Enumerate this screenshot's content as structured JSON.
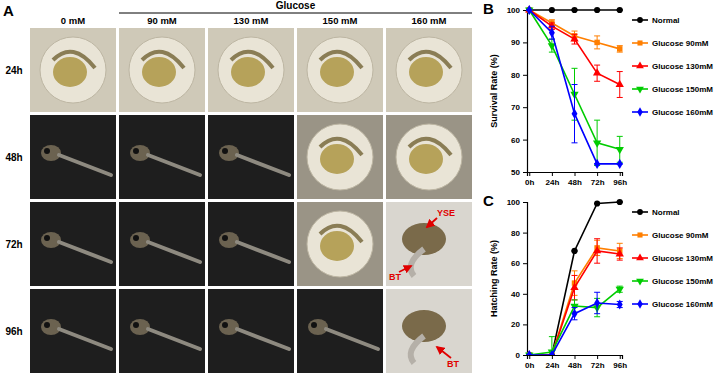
{
  "panel_a": {
    "label": "A",
    "header": "Glucose",
    "columns": [
      "0 mM",
      "90 mM",
      "130 mM",
      "150 mM",
      "160 mM"
    ],
    "rows": [
      "24h",
      "48h",
      "72h",
      "96h"
    ],
    "notes": [
      {
        "row": "72h",
        "column": "160 mM",
        "text": "YSE"
      },
      {
        "row": "72h",
        "column": "160 mM",
        "text": "BT"
      },
      {
        "row": "96h",
        "column": "160 mM",
        "text": "BT"
      }
    ]
  },
  "chart_data": [
    {
      "type": "line",
      "panel": "B",
      "y_label": "Survival Rate (%)",
      "categories": [
        "0h",
        "24h",
        "48h",
        "72h",
        "96h"
      ],
      "ylim": [
        50,
        100
      ],
      "yticks": [
        50,
        60,
        70,
        80,
        90,
        100
      ],
      "grid": false,
      "legend": "right",
      "series": [
        {
          "name": "Normal",
          "color": "#000000",
          "marker": "circle",
          "values": [
            100,
            100,
            100,
            100,
            100
          ],
          "errors": [
            0,
            0,
            0,
            0,
            0
          ]
        },
        {
          "name": "Glucose 90mM",
          "color": "#ff7f00",
          "marker": "square",
          "values": [
            100,
            96,
            92,
            90,
            88
          ],
          "errors": [
            0,
            1,
            1.5,
            2,
            1
          ]
        },
        {
          "name": "Glucose 130mM",
          "color": "#ff0000",
          "marker": "triangle-up",
          "values": [
            100,
            95,
            91,
            80.5,
            77
          ],
          "errors": [
            0,
            1,
            1.5,
            2.5,
            4
          ]
        },
        {
          "name": "Glucose 150mM",
          "color": "#00cc00",
          "marker": "triangle-down",
          "values": [
            100,
            89,
            74,
            59,
            57
          ],
          "errors": [
            0,
            2,
            8,
            7,
            4
          ]
        },
        {
          "name": "Glucose 160mM",
          "color": "#0000ff",
          "marker": "diamond",
          "values": [
            100,
            93,
            68,
            52.5,
            52.5
          ],
          "errors": [
            0,
            2,
            9,
            0,
            0
          ]
        }
      ]
    },
    {
      "type": "line",
      "panel": "C",
      "y_label": "Hatching Rate (%)",
      "categories": [
        "0h",
        "24h",
        "48h",
        "72h",
        "96h"
      ],
      "ylim": [
        0,
        100
      ],
      "yticks": [
        0,
        20,
        40,
        60,
        80,
        100
      ],
      "grid": false,
      "legend": "right",
      "series": [
        {
          "name": "Normal",
          "color": "#000000",
          "marker": "circle",
          "values": [
            0,
            0,
            68,
            99,
            100
          ],
          "errors": [
            0,
            0,
            0,
            0,
            0
          ]
        },
        {
          "name": "Glucose 90mM",
          "color": "#ff7f00",
          "marker": "square",
          "values": [
            0,
            0,
            47,
            70,
            68
          ],
          "errors": [
            0,
            0,
            8,
            5,
            5
          ]
        },
        {
          "name": "Glucose 130mM",
          "color": "#ff0000",
          "marker": "triangle-up",
          "values": [
            0,
            0,
            44,
            68,
            66
          ],
          "errors": [
            0,
            0,
            8,
            8,
            4
          ]
        },
        {
          "name": "Glucose 150mM",
          "color": "#00cc00",
          "marker": "triangle-down",
          "values": [
            0,
            2,
            32,
            31,
            43
          ],
          "errors": [
            0,
            10,
            4,
            6,
            2
          ]
        },
        {
          "name": "Glucose 160mM",
          "color": "#0000ff",
          "marker": "diamond",
          "values": [
            0,
            0,
            27,
            34,
            33
          ],
          "errors": [
            0,
            0,
            4,
            7,
            2
          ]
        }
      ]
    }
  ]
}
